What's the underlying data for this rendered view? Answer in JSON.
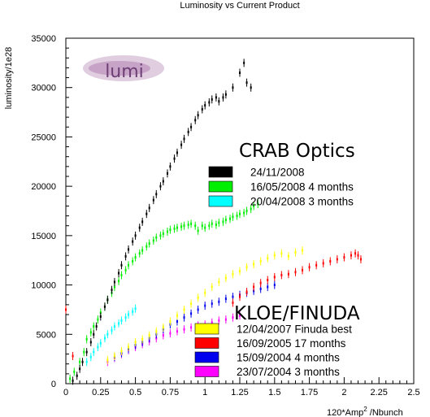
{
  "chart_data": {
    "type": "scatter",
    "title": "Luminosity vs Current Product",
    "xlabel": "120*Amp",
    "xlabel_superscript": "2",
    "xlabel_suffix": " /Nbunch",
    "ylabel": "luminosity/1e28",
    "xlim": [
      0,
      2.5
    ],
    "ylim": [
      0,
      35000
    ],
    "x_ticks": [
      "0",
      "0.25",
      "0.5",
      "0.75",
      "1",
      "1.25",
      "1.5",
      "1.75",
      "2",
      "2.25",
      "2.5"
    ],
    "y_ticks": [
      "0",
      "5000",
      "10000",
      "15000",
      "20000",
      "25000",
      "30000",
      "35000"
    ],
    "logo_text": "lumi",
    "groups": [
      {
        "heading": "CRAB Optics",
        "series": [
          {
            "name": "24/11/2008",
            "color": "#000000",
            "points": [
              [
                0.05,
                300
              ],
              [
                0.08,
                800
              ],
              [
                0.1,
                1500
              ],
              [
                0.12,
                2200
              ],
              [
                0.15,
                3200
              ],
              [
                0.18,
                4200
              ],
              [
                0.2,
                5000
              ],
              [
                0.22,
                5800
              ],
              [
                0.25,
                6800
              ],
              [
                0.28,
                7800
              ],
              [
                0.3,
                8500
              ],
              [
                0.33,
                9500
              ],
              [
                0.35,
                10300
              ],
              [
                0.38,
                11200
              ],
              [
                0.4,
                12000
              ],
              [
                0.43,
                12900
              ],
              [
                0.45,
                13600
              ],
              [
                0.48,
                14400
              ],
              [
                0.5,
                15000
              ],
              [
                0.53,
                15800
              ],
              [
                0.55,
                16400
              ],
              [
                0.58,
                17200
              ],
              [
                0.6,
                17800
              ],
              [
                0.63,
                18600
              ],
              [
                0.65,
                19200
              ],
              [
                0.68,
                20000
              ],
              [
                0.7,
                20500
              ],
              [
                0.73,
                21300
              ],
              [
                0.75,
                22000
              ],
              [
                0.78,
                22800
              ],
              [
                0.8,
                23400
              ],
              [
                0.83,
                24200
              ],
              [
                0.85,
                24800
              ],
              [
                0.88,
                25500
              ],
              [
                0.9,
                26000
              ],
              [
                0.93,
                26700
              ],
              [
                0.95,
                27200
              ],
              [
                0.98,
                27800
              ],
              [
                1.0,
                28200
              ],
              [
                1.03,
                28500
              ],
              [
                1.05,
                28800
              ],
              [
                1.08,
                29000
              ],
              [
                1.1,
                28600
              ],
              [
                1.13,
                29000
              ],
              [
                1.15,
                29300
              ],
              [
                1.2,
                30000
              ],
              [
                1.25,
                31500
              ],
              [
                1.28,
                32500
              ],
              [
                1.3,
                30500
              ],
              [
                1.33,
                30000
              ]
            ]
          },
          {
            "name": "16/05/2008 4 months",
            "color": "#00ee00",
            "points": [
              [
                0.03,
                500
              ],
              [
                0.06,
                1200
              ],
              [
                0.1,
                2200
              ],
              [
                0.13,
                3200
              ],
              [
                0.15,
                4500
              ],
              [
                0.18,
                5200
              ],
              [
                0.2,
                5800
              ],
              [
                0.23,
                6500
              ],
              [
                0.25,
                7200
              ],
              [
                0.28,
                7800
              ],
              [
                0.3,
                8500
              ],
              [
                0.33,
                9200
              ],
              [
                0.35,
                9800
              ],
              [
                0.38,
                10400
              ],
              [
                0.4,
                11000
              ],
              [
                0.43,
                11500
              ],
              [
                0.45,
                12000
              ],
              [
                0.48,
                12400
              ],
              [
                0.5,
                12800
              ],
              [
                0.53,
                13200
              ],
              [
                0.55,
                13500
              ],
              [
                0.58,
                13900
              ],
              [
                0.6,
                14200
              ],
              [
                0.63,
                14500
              ],
              [
                0.65,
                14800
              ],
              [
                0.68,
                15000
              ],
              [
                0.7,
                15200
              ],
              [
                0.73,
                15400
              ],
              [
                0.75,
                15600
              ],
              [
                0.78,
                15700
              ],
              [
                0.8,
                15800
              ],
              [
                0.83,
                15900
              ],
              [
                0.85,
                16000
              ],
              [
                0.88,
                16100
              ],
              [
                0.9,
                16200
              ],
              [
                0.93,
                16000
              ],
              [
                0.95,
                15500
              ],
              [
                0.98,
                16000
              ],
              [
                1.0,
                15800
              ],
              [
                1.03,
                16000
              ],
              [
                1.05,
                16200
              ],
              [
                1.08,
                16100
              ],
              [
                1.1,
                16300
              ],
              [
                1.13,
                16400
              ],
              [
                1.15,
                16600
              ],
              [
                1.18,
                16700
              ],
              [
                1.2,
                16900
              ],
              [
                1.23,
                17000
              ],
              [
                1.25,
                17200
              ],
              [
                1.28,
                17300
              ],
              [
                1.3,
                17500
              ],
              [
                1.33,
                17700
              ],
              [
                1.35,
                18000
              ],
              [
                1.38,
                18200
              ]
            ]
          },
          {
            "name": "20/04/2008 3 months",
            "color": "#00ffff",
            "points": [
              [
                0.15,
                2200
              ],
              [
                0.18,
                2700
              ],
              [
                0.2,
                3200
              ],
              [
                0.23,
                3700
              ],
              [
                0.25,
                4100
              ],
              [
                0.28,
                4600
              ],
              [
                0.3,
                5000
              ],
              [
                0.33,
                5400
              ],
              [
                0.35,
                5800
              ],
              [
                0.38,
                6100
              ],
              [
                0.4,
                6400
              ],
              [
                0.43,
                6700
              ],
              [
                0.45,
                7000
              ],
              [
                0.48,
                7300
              ],
              [
                0.5,
                7600
              ]
            ]
          }
        ]
      },
      {
        "heading": "KLOE/FINUDA",
        "series": [
          {
            "name": "12/04/2007 Finuda best",
            "color": "#ffff00",
            "points": [
              [
                0.3,
                2400
              ],
              [
                0.35,
                2800
              ],
              [
                0.4,
                3300
              ],
              [
                0.45,
                3700
              ],
              [
                0.5,
                4200
              ],
              [
                0.55,
                4500
              ],
              [
                0.6,
                4900
              ],
              [
                0.65,
                5300
              ],
              [
                0.7,
                5700
              ],
              [
                0.75,
                6300
              ],
              [
                0.8,
                6900
              ],
              [
                0.85,
                7500
              ],
              [
                0.9,
                8100
              ],
              [
                0.95,
                8700
              ],
              [
                1.0,
                9200
              ],
              [
                1.05,
                9800
              ],
              [
                1.1,
                10300
              ],
              [
                1.15,
                10700
              ],
              [
                1.2,
                11100
              ],
              [
                1.25,
                11400
              ],
              [
                1.3,
                11800
              ],
              [
                1.35,
                12100
              ],
              [
                1.4,
                12400
              ],
              [
                1.45,
                12700
              ],
              [
                1.5,
                13000
              ],
              [
                1.55,
                13200
              ],
              [
                1.6,
                12900
              ],
              [
                1.65,
                13300
              ],
              [
                1.7,
                13500
              ]
            ]
          },
          {
            "name": "16/09/2005 17 months",
            "color": "#ff0000",
            "points": [
              [
                0.0,
                7500
              ],
              [
                0.05,
                2800
              ],
              [
                1.2,
                8200
              ],
              [
                1.25,
                8800
              ],
              [
                1.3,
                9300
              ],
              [
                1.35,
                9800
              ],
              [
                1.4,
                10200
              ],
              [
                1.45,
                10500
              ],
              [
                1.5,
                10800
              ],
              [
                1.55,
                11000
              ],
              [
                1.6,
                11100
              ],
              [
                1.65,
                11300
              ],
              [
                1.7,
                11500
              ],
              [
                1.75,
                11800
              ],
              [
                1.8,
                12000
              ],
              [
                1.85,
                12200
              ],
              [
                1.9,
                12400
              ],
              [
                1.95,
                12600
              ],
              [
                2.0,
                12800
              ],
              [
                2.05,
                13000
              ],
              [
                2.08,
                13200
              ],
              [
                2.1,
                13000
              ],
              [
                2.12,
                12600
              ]
            ]
          },
          {
            "name": "15/09/2004 4 months",
            "color": "#0000ee",
            "points": [
              [
                0.35,
                2700
              ],
              [
                0.4,
                3100
              ],
              [
                0.45,
                3500
              ],
              [
                0.5,
                3900
              ],
              [
                0.55,
                4200
              ],
              [
                0.6,
                4600
              ],
              [
                0.65,
                5000
              ],
              [
                0.7,
                5500
              ],
              [
                0.75,
                6000
              ],
              [
                0.8,
                6300
              ],
              [
                0.85,
                6700
              ],
              [
                0.9,
                7100
              ],
              [
                0.95,
                7500
              ],
              [
                1.0,
                7900
              ],
              [
                1.05,
                8100
              ],
              [
                1.1,
                8300
              ],
              [
                1.15,
                8600
              ],
              [
                1.2,
                8800
              ],
              [
                1.25,
                9000
              ],
              [
                1.3,
                9200
              ],
              [
                1.35,
                9400
              ],
              [
                1.4,
                9600
              ],
              [
                1.45,
                9800
              ],
              [
                1.5,
                10000
              ]
            ]
          },
          {
            "name": "23/07/2004 3 months",
            "color": "#ff00ff",
            "points": [
              [
                0.3,
                2200
              ],
              [
                0.35,
                2600
              ],
              [
                0.4,
                3000
              ],
              [
                0.45,
                3400
              ],
              [
                0.5,
                3700
              ],
              [
                0.55,
                4000
              ],
              [
                0.6,
                4300
              ],
              [
                0.65,
                4600
              ],
              [
                0.7,
                4900
              ],
              [
                0.75,
                5100
              ],
              [
                0.8,
                5300
              ],
              [
                0.85,
                5500
              ],
              [
                0.9,
                5700
              ],
              [
                0.95,
                5900
              ],
              [
                1.0,
                6000
              ],
              [
                1.05,
                6200
              ],
              [
                1.1,
                6400
              ],
              [
                1.15,
                6500
              ],
              [
                1.2,
                6700
              ],
              [
                1.25,
                6900
              ]
            ]
          }
        ]
      }
    ]
  }
}
